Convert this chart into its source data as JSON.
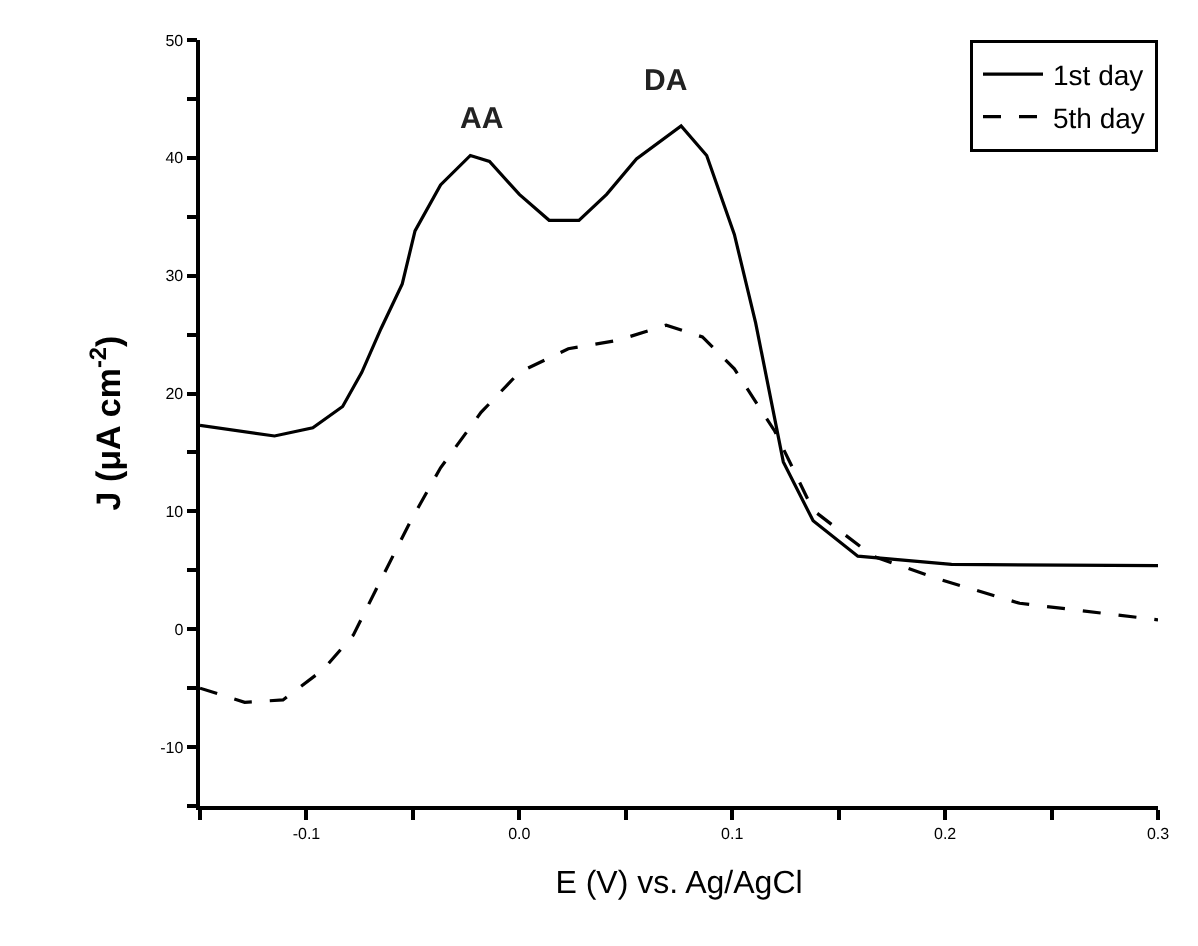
{
  "chart_data": {
    "type": "line",
    "xlabel": "E (V) vs. Ag/AgCl",
    "ylabel": "J (μA cm$^{-2}$)",
    "xlim": [
      -0.15,
      0.3
    ],
    "ylim": [
      -15,
      50
    ],
    "xticks": [
      {
        "value": -0.15,
        "label": null
      },
      -0.1,
      {
        "value": -0.05,
        "label": null
      },
      {
        "value": 0,
        "label": "0.0"
      },
      {
        "value": 0.05,
        "label": null
      },
      0.1,
      {
        "value": 0.15,
        "label": null
      },
      0.2,
      {
        "value": 0.25,
        "label": null
      },
      0.3
    ],
    "yticks": [
      {
        "value": -15,
        "label": null
      },
      -10,
      {
        "value": -5,
        "label": null
      },
      0,
      {
        "value": 5,
        "label": null
      },
      10,
      {
        "value": 15,
        "label": null
      },
      20,
      {
        "value": 25,
        "label": null
      },
      30,
      {
        "value": 35,
        "label": null
      },
      40,
      {
        "value": 45,
        "label": null
      },
      50
    ],
    "legend": "top right",
    "marker": "none",
    "annotations": [
      "AA",
      "DA"
    ],
    "series": [
      {
        "name": "1st day",
        "color": "#000000",
        "line_style": "solid",
        "x": [
          -0.15,
          -0.115,
          -0.097,
          -0.083,
          -0.074,
          -0.065,
          -0.055,
          -0.049,
          -0.037,
          -0.023,
          -0.014,
          0.0,
          0.014,
          0.028,
          0.041,
          0.055,
          0.076,
          0.088,
          0.101,
          0.111,
          0.124,
          0.138,
          0.159,
          0.203,
          0.3
        ],
        "values": [
          17.3,
          16.4,
          17.1,
          18.9,
          21.8,
          25.5,
          29.3,
          33.8,
          37.7,
          40.2,
          39.7,
          36.9,
          34.7,
          34.7,
          36.9,
          39.9,
          42.7,
          40.2,
          33.5,
          26.0,
          14.2,
          9.2,
          6.2,
          5.5,
          5.4
        ]
      },
      {
        "name": "5th day",
        "color": "#000000",
        "line_style": "dashed",
        "x": [
          -0.15,
          -0.129,
          -0.111,
          -0.092,
          -0.078,
          -0.065,
          -0.051,
          -0.037,
          -0.018,
          0.0,
          0.023,
          0.046,
          0.069,
          0.086,
          0.101,
          0.12,
          0.138,
          0.166,
          0.198,
          0.235,
          0.3
        ],
        "values": [
          -5.0,
          -6.2,
          -6.0,
          -3.4,
          -0.5,
          4.2,
          9.2,
          13.7,
          18.4,
          21.8,
          23.8,
          24.5,
          25.8,
          24.8,
          22.1,
          16.8,
          10.1,
          6.2,
          4.2,
          2.2,
          0.8
        ]
      }
    ]
  }
}
